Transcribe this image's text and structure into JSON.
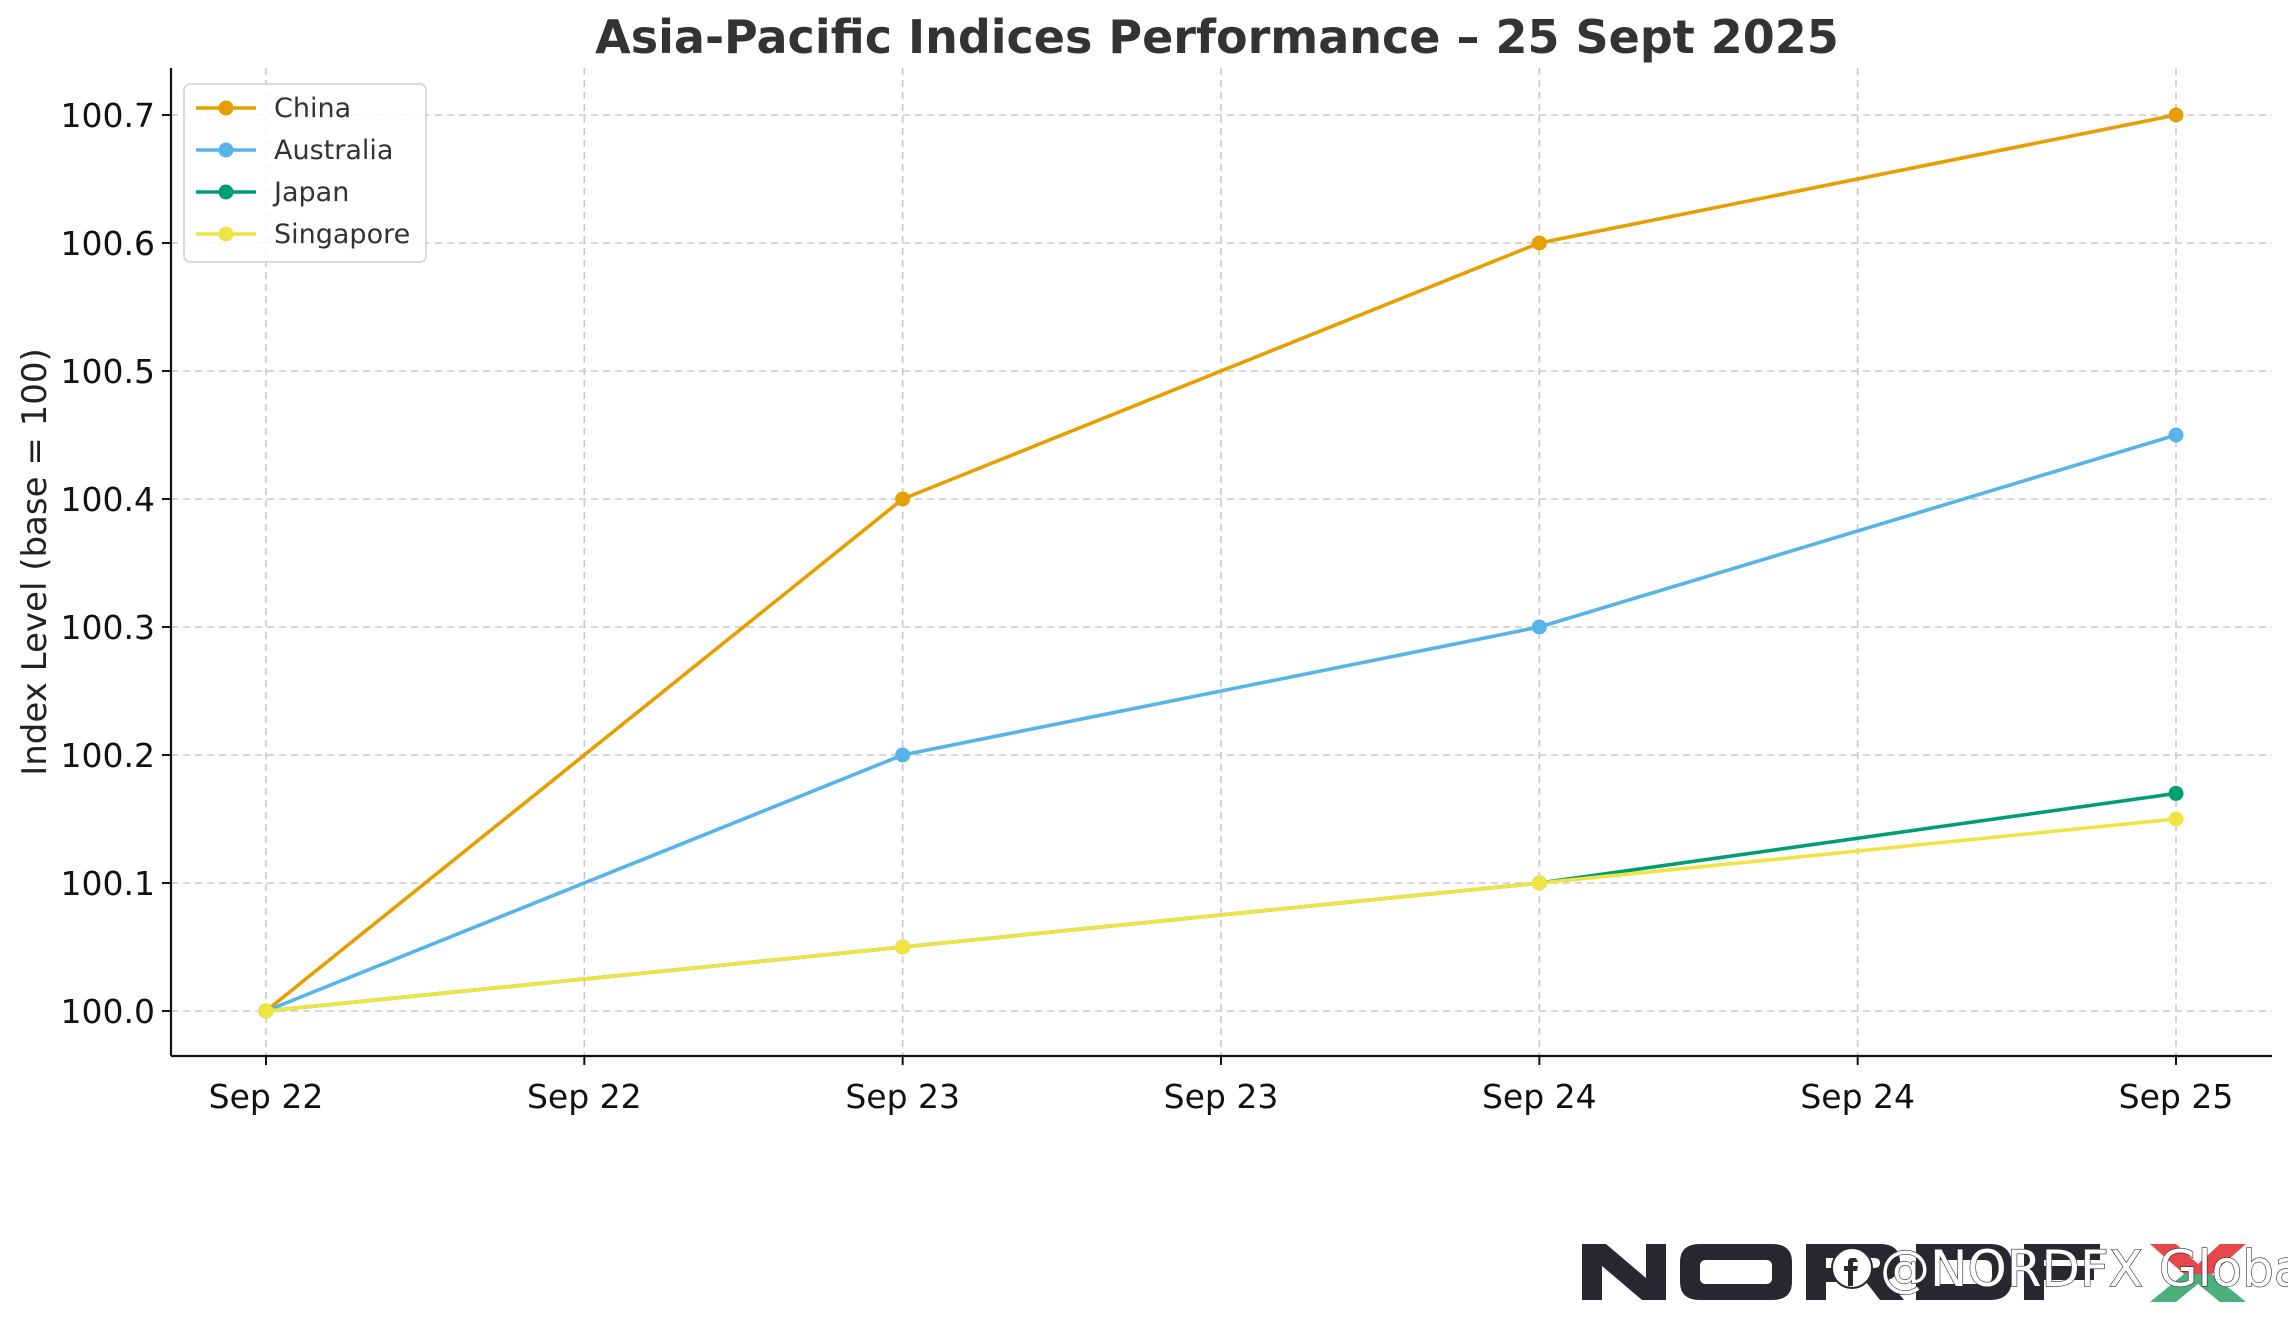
{
  "chart_data": {
    "type": "line",
    "title": "Asia-Pacific Indices Performance – 25 Sept 2025",
    "xlabel": "",
    "ylabel": "Index Level (base = 100)",
    "x": [
      "2025-09-22",
      "2025-09-23",
      "2025-09-24",
      "2025-09-25"
    ],
    "x_tick_labels": [
      "Sep 22",
      "Sep 22",
      "Sep 23",
      "Sep 23",
      "Sep 24",
      "Sep 24",
      "Sep 25"
    ],
    "y_ticks": [
      100.0,
      100.1,
      100.2,
      100.3,
      100.4,
      100.5,
      100.6,
      100.7
    ],
    "y_tick_labels": [
      "100.0",
      "100.1",
      "100.2",
      "100.3",
      "100.4",
      "100.5",
      "100.6",
      "100.7"
    ],
    "ylim": [
      99.965,
      100.735
    ],
    "grid": true,
    "legend_position": "top-left",
    "series": [
      {
        "name": "China",
        "color": "#E69F00",
        "values": [
          100.0,
          100.4,
          100.6,
          100.7
        ]
      },
      {
        "name": "Australia",
        "color": "#56B4E9",
        "values": [
          100.0,
          100.2,
          100.3,
          100.45
        ]
      },
      {
        "name": "Japan",
        "color": "#009E73",
        "values": [
          100.0,
          100.05,
          100.1,
          100.17
        ]
      },
      {
        "name": "Singapore",
        "color": "#F0E442",
        "values": [
          100.0,
          100.05,
          100.1,
          100.15
        ]
      }
    ]
  },
  "branding": {
    "logo_text": "NORDFX",
    "social_handle": "@NORDFX Global",
    "logo_color": "#2b2730",
    "logo_accent_colors": [
      "#e8474c",
      "#4bb07b"
    ],
    "social_icon": "facebook-icon"
  }
}
